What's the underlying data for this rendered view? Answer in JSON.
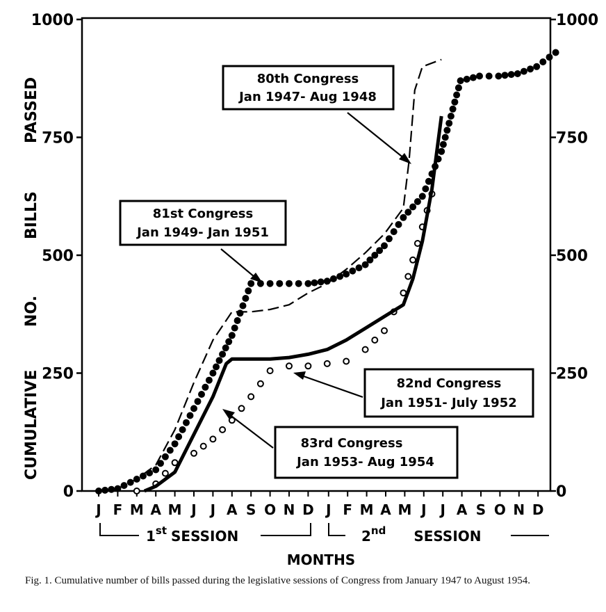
{
  "chart_data": {
    "type": "line",
    "ylabel": "CUMULATIVE   NO.   BILLS   PASSED",
    "xlabel": "MONTHS",
    "ylim": [
      0,
      1000
    ],
    "yticks": [
      "0",
      "250",
      "500",
      "750",
      "1000"
    ],
    "month_labels": [
      "J",
      "F",
      "M",
      "A",
      "M",
      "J",
      "J",
      "A",
      "S",
      "O",
      "N",
      "D",
      "J",
      "F",
      "M",
      "A",
      "M",
      "J",
      "J",
      "A",
      "S",
      "O",
      "N",
      "D"
    ],
    "session1_label_a": "1",
    "session1_label_sup": "st",
    "session1_label_b": "SESSION",
    "session2_label_a": "2",
    "session2_label_sup": "nd",
    "session2_label_b": "SESSION",
    "grid": false,
    "series": [
      {
        "name": "80th Congress Jan 1947- Aug 1948",
        "style": "dashed",
        "x": [
          0,
          1,
          2,
          3,
          4,
          5,
          6,
          7,
          8,
          9,
          10,
          11,
          12,
          13,
          14,
          15,
          16,
          16.3,
          16.6,
          17,
          18
        ],
        "y": [
          0,
          5,
          25,
          55,
          130,
          230,
          320,
          380,
          380,
          385,
          395,
          420,
          440,
          470,
          505,
          545,
          600,
          700,
          850,
          900,
          915
        ]
      },
      {
        "name": "81st Congress Jan 1949- Jan 1951",
        "style": "large-dots",
        "x": [
          0,
          1,
          2,
          3,
          4,
          5,
          6,
          7,
          8,
          9,
          10,
          11,
          12,
          13,
          14,
          15,
          16,
          17,
          18,
          19,
          20,
          21,
          22,
          23,
          24
        ],
        "y": [
          0,
          5,
          25,
          45,
          100,
          175,
          250,
          330,
          440,
          440,
          440,
          440,
          445,
          460,
          480,
          520,
          580,
          625,
          720,
          870,
          880,
          880,
          885,
          900,
          930
        ]
      },
      {
        "name": "82nd Congress Jan 1951- July 1952",
        "style": "small-circles",
        "x": [
          2,
          3,
          4,
          5,
          6,
          7,
          8,
          9,
          10,
          11,
          12,
          13,
          14,
          15,
          15.5,
          16,
          16.5,
          17,
          17.5
        ],
        "y": [
          0,
          15,
          60,
          80,
          110,
          150,
          200,
          255,
          265,
          265,
          270,
          275,
          300,
          340,
          380,
          420,
          490,
          560,
          630
        ]
      },
      {
        "name": "83rd Congress Jan 1953- Aug 1954",
        "style": "solid",
        "x": [
          2.4,
          3,
          4,
          5,
          6,
          6.7,
          7,
          8,
          9,
          10,
          11,
          12,
          13,
          14,
          15,
          16,
          16.5,
          17,
          17.5,
          18
        ],
        "y": [
          0,
          10,
          40,
          120,
          200,
          270,
          280,
          280,
          280,
          283,
          290,
          300,
          320,
          345,
          370,
          395,
          450,
          530,
          640,
          795
        ]
      }
    ],
    "annotations": [
      {
        "line1": "80th  Congress",
        "line2": "Jan 1947- Aug 1948"
      },
      {
        "line1": "81st  Congress",
        "line2": "Jan 1949-  Jan 1951"
      },
      {
        "line1": "82nd  Congress",
        "line2": "Jan 1951-  July 1952"
      },
      {
        "line1": "83rd  Congress",
        "line2": "Jan 1953- Aug 1954"
      }
    ]
  },
  "caption": "Fig. 1. Cumulative number of bills passed during the legislative sessions of Congress from January 1947 to August 1954."
}
